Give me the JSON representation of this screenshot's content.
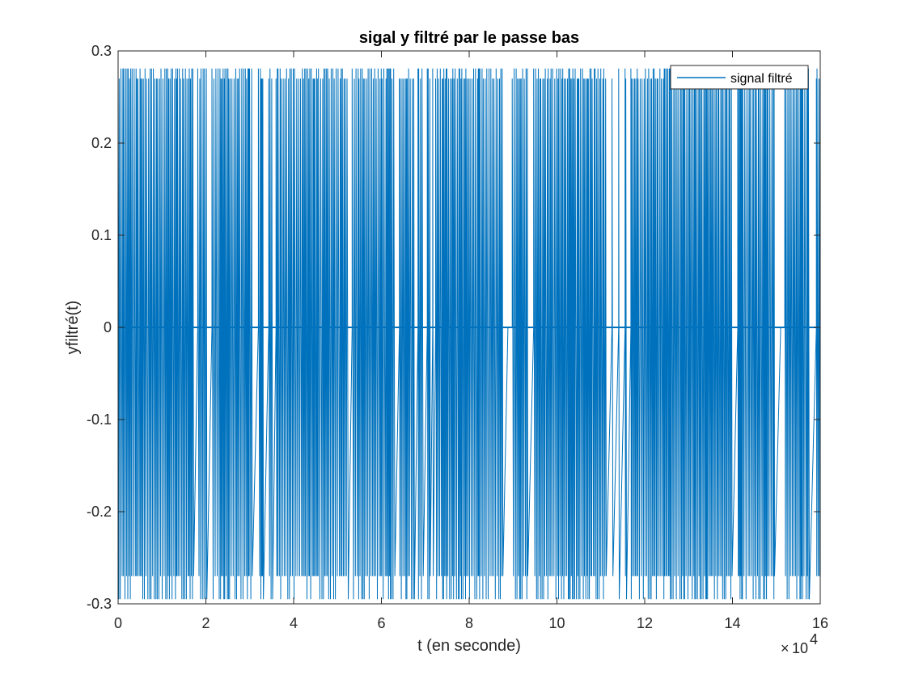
{
  "chart_data": {
    "type": "line",
    "title": "sigal y filtré par le passe bas",
    "xlabel": "t (en seconde)",
    "ylabel": "yfiltré(t)",
    "xlim": [
      0,
      160000
    ],
    "ylim": [
      -0.3,
      0.3
    ],
    "x_ticks": [
      0,
      2,
      4,
      6,
      8,
      10,
      12,
      14,
      16
    ],
    "x_tick_labels": [
      "0",
      "2",
      "4",
      "6",
      "8",
      "10",
      "12",
      "14",
      "16"
    ],
    "x_exponent_label": {
      "base": "10",
      "exponent": "4"
    },
    "y_ticks": [
      0.3,
      0.2,
      0.1,
      0,
      -0.1,
      -0.2,
      -0.3
    ],
    "y_tick_labels": [
      "0.3",
      "0.2",
      "0.1",
      "0",
      "-0.1",
      "-0.2",
      "-0.3"
    ],
    "grid": false,
    "legend_position": "top-right",
    "series": [
      {
        "name": "signal filtré",
        "color": "#0072BD",
        "values_range": [
          -0.295,
          0.281
        ],
        "burst_levels": [
          0.281,
          0.27,
          -0.27,
          -0.295
        ],
        "baseline": 0
      }
    ]
  }
}
